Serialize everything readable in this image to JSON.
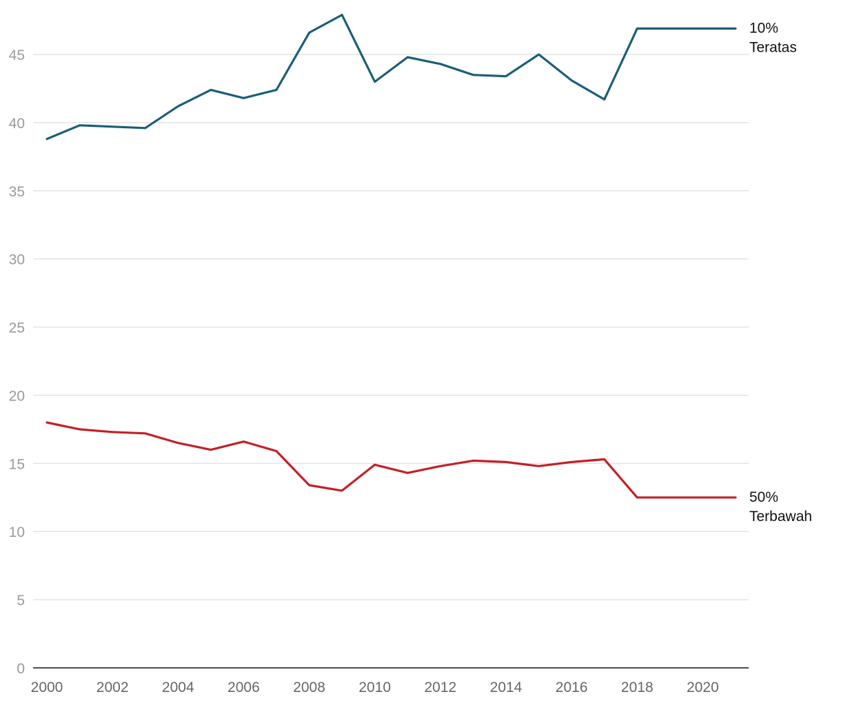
{
  "chart_data": {
    "type": "line",
    "title": "",
    "xlabel": "",
    "ylabel": "",
    "x": [
      2000,
      2001,
      2002,
      2003,
      2004,
      2005,
      2006,
      2007,
      2008,
      2009,
      2010,
      2011,
      2012,
      2013,
      2014,
      2015,
      2016,
      2017,
      2018,
      2019,
      2020,
      2021
    ],
    "xticks": [
      "2000",
      "2002",
      "2004",
      "2006",
      "2008",
      "2010",
      "2012",
      "2014",
      "2016",
      "2018",
      "2020"
    ],
    "yticks": [
      "0",
      "5",
      "10",
      "15",
      "20",
      "25",
      "30",
      "35",
      "40",
      "45"
    ],
    "ylim": [
      0,
      48
    ],
    "grid": true,
    "legend": "inline-right",
    "series": [
      {
        "name": "10% Teratas",
        "label_lines": [
          "10%",
          "Teratas"
        ],
        "color": "#1b5e78",
        "values": [
          38.8,
          39.8,
          39.7,
          39.6,
          41.2,
          42.4,
          41.8,
          42.4,
          46.6,
          47.9,
          43.0,
          44.8,
          44.3,
          43.5,
          43.4,
          45.0,
          43.1,
          41.7,
          46.9,
          46.9,
          46.9,
          46.9
        ]
      },
      {
        "name": "50% Terbawah",
        "label_lines": [
          "50%",
          "Terbawah"
        ],
        "color": "#c32025",
        "values": [
          18.0,
          17.5,
          17.3,
          17.2,
          16.5,
          16.0,
          16.6,
          15.9,
          13.4,
          13.0,
          14.9,
          14.3,
          14.8,
          15.2,
          15.1,
          14.8,
          15.1,
          15.3,
          12.5,
          12.5,
          12.5,
          12.5
        ]
      }
    ]
  }
}
